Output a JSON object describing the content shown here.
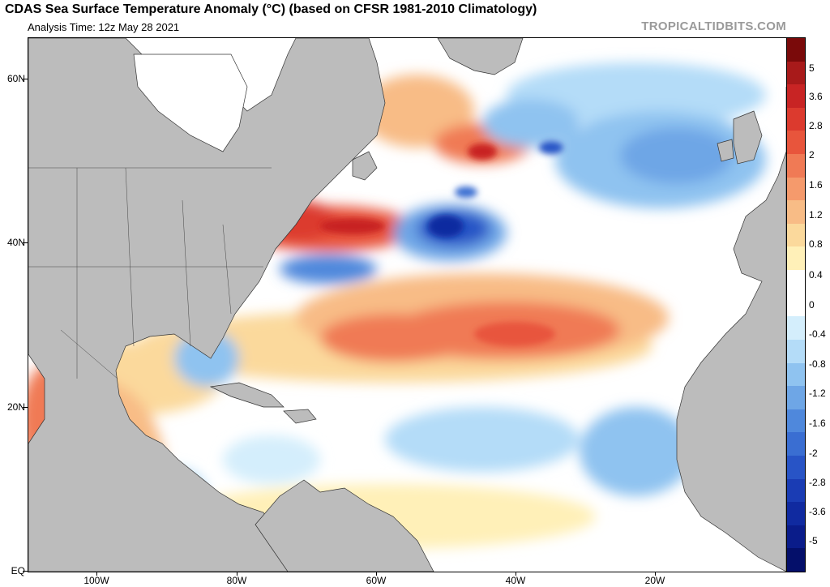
{
  "header": {
    "title": "CDAS Sea Surface Temperature Anomaly (°C) (based on CFSR 1981-2010 Climatology)",
    "analysis_time": "Analysis Time: 12z May 28 2021",
    "brand": "TROPICALTIDBITS.COM"
  },
  "map": {
    "lat_labels": [
      {
        "label": "60N",
        "value": 60
      },
      {
        "label": "40N",
        "value": 40
      },
      {
        "label": "20N",
        "value": 20
      },
      {
        "label": "EQ",
        "value": 0
      }
    ],
    "lon_labels": [
      {
        "label": "100W",
        "value": -100
      },
      {
        "label": "80W",
        "value": -80
      },
      {
        "label": "60W",
        "value": -60
      },
      {
        "label": "40W",
        "value": -40
      },
      {
        "label": "20W",
        "value": -20
      }
    ],
    "colors": {
      "land": "#bcbcbc",
      "ice": "#ffffff",
      "warm": "#e03a2a",
      "cold": "#2b5fd6",
      "neutral": "#ffffff"
    }
  },
  "colorbar": {
    "labels": [
      "5",
      "3.6",
      "2.8",
      "2",
      "1.6",
      "1.2",
      "0.8",
      "0.4",
      "0",
      "-0.4",
      "-0.8",
      "-1.2",
      "-1.6",
      "-2",
      "-2.8",
      "-3.6",
      "-5"
    ],
    "colors": [
      "#7a0a0a",
      "#a81a1a",
      "#c82424",
      "#dc3a2e",
      "#e8553c",
      "#f07a55",
      "#f59a6c",
      "#f8bc86",
      "#fbd99c",
      "#fff0b8",
      "#ffffff",
      "#ffffff",
      "#d4eefc",
      "#b4dcf8",
      "#8fc3f0",
      "#6ea6e6",
      "#4f88dc",
      "#3a6ed2",
      "#2854c6",
      "#1a3cb4",
      "#102aa0",
      "#0a1c8a",
      "#040f6a"
    ]
  }
}
